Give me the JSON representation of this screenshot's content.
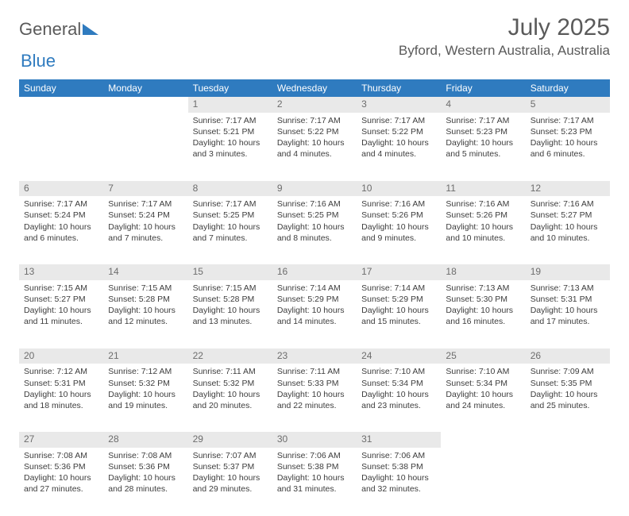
{
  "logo": {
    "text1": "General",
    "text2": "Blue"
  },
  "title": "July 2025",
  "location": "Byford, Western Australia, Australia",
  "colors": {
    "header_bg": "#2f7bbf",
    "header_text": "#ffffff",
    "daynum_bg": "#e9e9e9",
    "daynum_text": "#6d6d6d",
    "body_text": "#3d3d3d",
    "title_text": "#5a5a5a"
  },
  "day_headers": [
    "Sunday",
    "Monday",
    "Tuesday",
    "Wednesday",
    "Thursday",
    "Friday",
    "Saturday"
  ],
  "weeks": [
    {
      "nums": [
        "",
        "",
        "1",
        "2",
        "3",
        "4",
        "5"
      ],
      "cells": [
        null,
        null,
        {
          "sunrise": "7:17 AM",
          "sunset": "5:21 PM",
          "daylight": "10 hours and 3 minutes."
        },
        {
          "sunrise": "7:17 AM",
          "sunset": "5:22 PM",
          "daylight": "10 hours and 4 minutes."
        },
        {
          "sunrise": "7:17 AM",
          "sunset": "5:22 PM",
          "daylight": "10 hours and 4 minutes."
        },
        {
          "sunrise": "7:17 AM",
          "sunset": "5:23 PM",
          "daylight": "10 hours and 5 minutes."
        },
        {
          "sunrise": "7:17 AM",
          "sunset": "5:23 PM",
          "daylight": "10 hours and 6 minutes."
        }
      ]
    },
    {
      "nums": [
        "6",
        "7",
        "8",
        "9",
        "10",
        "11",
        "12"
      ],
      "cells": [
        {
          "sunrise": "7:17 AM",
          "sunset": "5:24 PM",
          "daylight": "10 hours and 6 minutes."
        },
        {
          "sunrise": "7:17 AM",
          "sunset": "5:24 PM",
          "daylight": "10 hours and 7 minutes."
        },
        {
          "sunrise": "7:17 AM",
          "sunset": "5:25 PM",
          "daylight": "10 hours and 7 minutes."
        },
        {
          "sunrise": "7:16 AM",
          "sunset": "5:25 PM",
          "daylight": "10 hours and 8 minutes."
        },
        {
          "sunrise": "7:16 AM",
          "sunset": "5:26 PM",
          "daylight": "10 hours and 9 minutes."
        },
        {
          "sunrise": "7:16 AM",
          "sunset": "5:26 PM",
          "daylight": "10 hours and 10 minutes."
        },
        {
          "sunrise": "7:16 AM",
          "sunset": "5:27 PM",
          "daylight": "10 hours and 10 minutes."
        }
      ]
    },
    {
      "nums": [
        "13",
        "14",
        "15",
        "16",
        "17",
        "18",
        "19"
      ],
      "cells": [
        {
          "sunrise": "7:15 AM",
          "sunset": "5:27 PM",
          "daylight": "10 hours and 11 minutes."
        },
        {
          "sunrise": "7:15 AM",
          "sunset": "5:28 PM",
          "daylight": "10 hours and 12 minutes."
        },
        {
          "sunrise": "7:15 AM",
          "sunset": "5:28 PM",
          "daylight": "10 hours and 13 minutes."
        },
        {
          "sunrise": "7:14 AM",
          "sunset": "5:29 PM",
          "daylight": "10 hours and 14 minutes."
        },
        {
          "sunrise": "7:14 AM",
          "sunset": "5:29 PM",
          "daylight": "10 hours and 15 minutes."
        },
        {
          "sunrise": "7:13 AM",
          "sunset": "5:30 PM",
          "daylight": "10 hours and 16 minutes."
        },
        {
          "sunrise": "7:13 AM",
          "sunset": "5:31 PM",
          "daylight": "10 hours and 17 minutes."
        }
      ]
    },
    {
      "nums": [
        "20",
        "21",
        "22",
        "23",
        "24",
        "25",
        "26"
      ],
      "cells": [
        {
          "sunrise": "7:12 AM",
          "sunset": "5:31 PM",
          "daylight": "10 hours and 18 minutes."
        },
        {
          "sunrise": "7:12 AM",
          "sunset": "5:32 PM",
          "daylight": "10 hours and 19 minutes."
        },
        {
          "sunrise": "7:11 AM",
          "sunset": "5:32 PM",
          "daylight": "10 hours and 20 minutes."
        },
        {
          "sunrise": "7:11 AM",
          "sunset": "5:33 PM",
          "daylight": "10 hours and 22 minutes."
        },
        {
          "sunrise": "7:10 AM",
          "sunset": "5:34 PM",
          "daylight": "10 hours and 23 minutes."
        },
        {
          "sunrise": "7:10 AM",
          "sunset": "5:34 PM",
          "daylight": "10 hours and 24 minutes."
        },
        {
          "sunrise": "7:09 AM",
          "sunset": "5:35 PM",
          "daylight": "10 hours and 25 minutes."
        }
      ]
    },
    {
      "nums": [
        "27",
        "28",
        "29",
        "30",
        "31",
        "",
        ""
      ],
      "cells": [
        {
          "sunrise": "7:08 AM",
          "sunset": "5:36 PM",
          "daylight": "10 hours and 27 minutes."
        },
        {
          "sunrise": "7:08 AM",
          "sunset": "5:36 PM",
          "daylight": "10 hours and 28 minutes."
        },
        {
          "sunrise": "7:07 AM",
          "sunset": "5:37 PM",
          "daylight": "10 hours and 29 minutes."
        },
        {
          "sunrise": "7:06 AM",
          "sunset": "5:38 PM",
          "daylight": "10 hours and 31 minutes."
        },
        {
          "sunrise": "7:06 AM",
          "sunset": "5:38 PM",
          "daylight": "10 hours and 32 minutes."
        },
        null,
        null
      ]
    }
  ],
  "labels": {
    "sunrise": "Sunrise:",
    "sunset": "Sunset:",
    "daylight": "Daylight:"
  }
}
